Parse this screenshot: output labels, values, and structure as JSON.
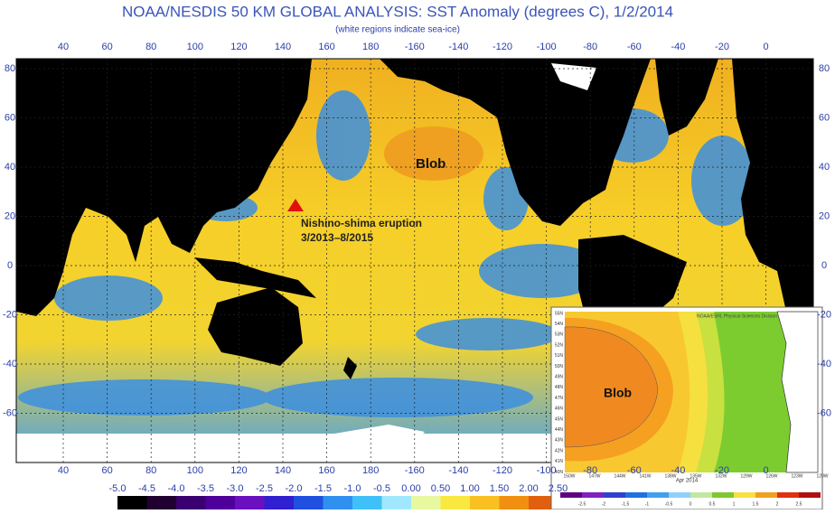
{
  "header": {
    "title": "NOAA/NESDIS 50 KM GLOBAL ANALYSIS: SST Anomaly (degrees C), 1/2/2014",
    "subtitle": "(white regions indicate sea-ice)"
  },
  "map": {
    "lon_labels": [
      "40",
      "60",
      "80",
      "100",
      "120",
      "140",
      "160",
      "180",
      "-160",
      "-140",
      "-120",
      "-100",
      "-80",
      "-60",
      "-40",
      "-20",
      "0"
    ],
    "lat_labels": [
      "80",
      "60",
      "40",
      "20",
      "0",
      "-20",
      "-40",
      "-60"
    ],
    "annotations": {
      "blob": "Blob",
      "eruption": "Nishino-shima eruption",
      "eruption_dates": "3/2013–8/2015"
    }
  },
  "colorbar": {
    "labels": [
      "-5.0",
      "-4.5",
      "-4.0",
      "-3.5",
      "-3.0",
      "-2.5",
      "-2.0",
      "-1.5",
      "-1.0",
      "-0.5",
      "0.00",
      "0.50",
      "1.00",
      "1.50",
      "2.00",
      "2.50"
    ]
  },
  "inset": {
    "credit": "NOAA/ESRL Physical Sciences Division",
    "date": "Apr 2014",
    "blob": "Blob",
    "lat_labels": [
      "55N",
      "54N",
      "53N",
      "52N",
      "51N",
      "50N",
      "49N",
      "48N",
      "47N",
      "46N",
      "45N",
      "44N",
      "43N",
      "42N",
      "41N",
      "40N"
    ],
    "lon_labels": [
      "150W",
      "147W",
      "144W",
      "141W",
      "138W",
      "135W",
      "132W",
      "129W",
      "126W",
      "123W",
      "120W"
    ],
    "colorbar_labels": [
      "-2.5",
      "-2",
      "-1.5",
      "-1",
      "-0.5",
      "0",
      "0.5",
      "1",
      "1.5",
      "2",
      "2.5"
    ]
  }
}
